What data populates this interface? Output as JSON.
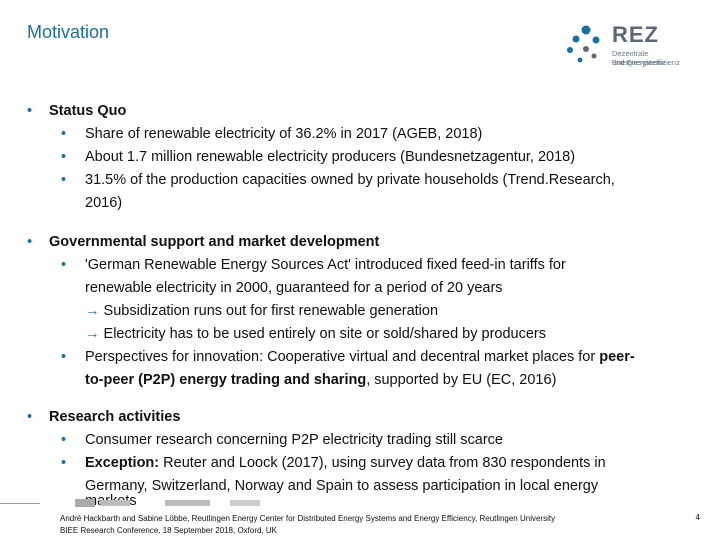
{
  "header": {
    "title": "Motivation"
  },
  "logo": {
    "word": "REZ",
    "line1": "Dezentrale Energiesysteme",
    "line2": "und Energieeffizienz"
  },
  "sections": [
    {
      "heading": "Status Quo",
      "items": [
        "Share of renewable electricity of 36.2% in 2017 (AGEB, 2018)",
        "About 1.7 million renewable electricity producers (Bundesnetzagentur, 2018)",
        "31.5% of the production capacities owned by private households (Trend.Research,",
        "2016)"
      ]
    },
    {
      "heading": "Governmental support and market development",
      "items": [
        "'German Renewable Energy Sources Act' introduced fixed feed-in tariffs for",
        "renewable electricity in 2000, guaranteed for a period of 20 years",
        "Subsidization runs out for first renewable generation",
        "Electricity has to be used entirely on site or sold/shared by producers",
        "Perspectives for innovation: Cooperative virtual and decentral market places for ",
        "peer-",
        "to-peer (P2P) energy trading and sharing",
        ", supported by EU (EC, 2016)"
      ]
    },
    {
      "heading": "Research activities",
      "items": [
        "Consumer research concerning P2P electricity trading still scarce",
        "Exception:",
        " Reuter and Loock (2017), using survey data from 830 respondents  in",
        "Germany, Switzerland, Norway and Spain to assess participation in local energy",
        "markets"
      ]
    }
  ],
  "footer": {
    "line1": "André Hackbarth and Sabine Löbbe, Reutlingen Energy Center for Distributed Energy Systems and Energy Efficiency, Reutlingen University",
    "line2": "BIEE Research Conference, 18 September 2018, Oxford, UK",
    "page": "4"
  },
  "colors": {
    "accent": "#1a6fa3",
    "logo_grey": "#5a6878"
  }
}
